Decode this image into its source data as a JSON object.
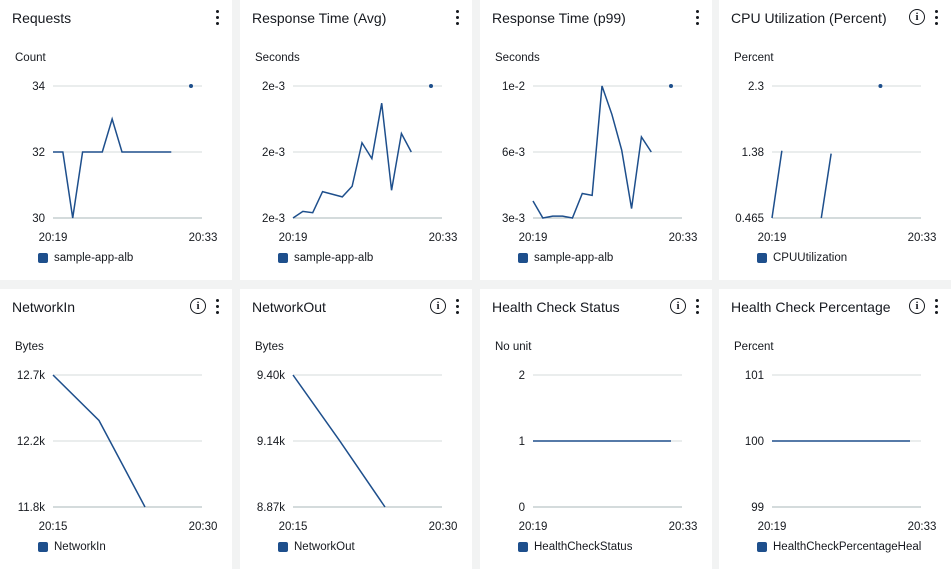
{
  "colors": {
    "line": "#1e4f8c",
    "grid": "#d5dbdb",
    "axis": "#aab7b8"
  },
  "icons": {
    "menu": "kebab-menu-icon",
    "info": "info-icon"
  },
  "widgets": [
    {
      "title": "Requests",
      "has_info": false,
      "unit": "Count",
      "y_ticks": [
        "34",
        "32",
        "30"
      ],
      "x_ticks": [
        "20:19",
        "20:33"
      ],
      "legend": "sample-app-alb",
      "chart_data": {
        "type": "line",
        "title": "Requests",
        "ylabel": "Count",
        "x": [
          "20:19",
          "20:20",
          "20:21",
          "20:22",
          "20:23",
          "20:24",
          "20:25",
          "20:26",
          "20:27",
          "20:28",
          "20:29",
          "20:30",
          "20:31",
          "20:32",
          "20:33"
        ],
        "ylim": [
          30,
          34
        ],
        "series": [
          {
            "name": "sample-app-alb",
            "values": [
              32,
              32,
              30,
              32,
              32,
              32,
              33,
              32,
              32,
              32,
              32,
              32,
              32,
              null,
              34
            ]
          }
        ]
      }
    },
    {
      "title": "Response Time (Avg)",
      "has_info": false,
      "unit": "Seconds",
      "y_ticks": [
        "2e-3",
        "2e-3",
        "2e-3"
      ],
      "x_ticks": [
        "20:19",
        "20:33"
      ],
      "legend": "sample-app-alb",
      "chart_data": {
        "type": "line",
        "title": "Response Time (Avg)",
        "ylabel": "Seconds",
        "x": [
          "20:19",
          "20:20",
          "20:21",
          "20:22",
          "20:23",
          "20:24",
          "20:25",
          "20:26",
          "20:27",
          "20:28",
          "20:29",
          "20:30",
          "20:31",
          "20:32",
          "20:33"
        ],
        "ylim": [
          0,
          1
        ],
        "series": [
          {
            "name": "sample-app-alb",
            "values": [
              0.0,
              0.05,
              0.04,
              0.2,
              0.18,
              0.16,
              0.24,
              0.57,
              0.45,
              0.87,
              0.21,
              0.64,
              0.5,
              null,
              1.0
            ]
          }
        ]
      }
    },
    {
      "title": "Response Time (p99)",
      "has_info": false,
      "unit": "Seconds",
      "y_ticks": [
        "1e-2",
        "6e-3",
        "3e-3"
      ],
      "x_ticks": [
        "20:19",
        "20:33"
      ],
      "legend": "sample-app-alb",
      "chart_data": {
        "type": "line",
        "title": "Response Time (p99)",
        "ylabel": "Seconds",
        "x": [
          "20:19",
          "20:20",
          "20:21",
          "20:22",
          "20:23",
          "20:24",
          "20:25",
          "20:26",
          "20:27",
          "20:28",
          "20:29",
          "20:30",
          "20:31",
          "20:32",
          "20:33"
        ],
        "ylim": [
          0.003,
          0.01
        ],
        "series": [
          {
            "name": "sample-app-alb",
            "values": [
              0.0039,
              0.003,
              0.0031,
              0.0031,
              0.003,
              0.0043,
              0.0042,
              0.01,
              0.0085,
              0.0066,
              0.0035,
              0.0073,
              0.0065,
              null,
              0.01
            ]
          }
        ]
      }
    },
    {
      "title": "CPU Utilization (Percent)",
      "has_info": true,
      "unit": "Percent",
      "y_ticks": [
        "2.3",
        "1.38",
        "0.465"
      ],
      "x_ticks": [
        "20:19",
        "20:33"
      ],
      "legend": "CPUUtilization",
      "chart_data": {
        "type": "line",
        "title": "CPU Utilization (Percent)",
        "ylabel": "Percent",
        "x": [
          "20:19",
          "20:20",
          "20:21",
          "20:22",
          "20:23",
          "20:24",
          "20:25",
          "20:26",
          "20:27",
          "20:28",
          "20:29",
          "20:30",
          "20:31",
          "20:32",
          "20:33"
        ],
        "ylim": [
          0.465,
          2.3
        ],
        "series": [
          {
            "name": "CPUUtilization",
            "values": [
              0.465,
              1.4,
              null,
              null,
              null,
              0.465,
              1.36,
              null,
              null,
              null,
              null,
              2.3,
              null,
              null,
              null
            ]
          }
        ]
      }
    },
    {
      "title": "NetworkIn",
      "has_info": true,
      "unit": "Bytes",
      "y_ticks": [
        "12.7k",
        "12.2k",
        "11.8k"
      ],
      "x_ticks": [
        "20:15",
        "20:30"
      ],
      "legend": "NetworkIn",
      "chart_data": {
        "type": "line",
        "title": "NetworkIn",
        "ylabel": "Bytes",
        "x": [
          "20:15",
          "20:20",
          "20:25",
          "20:30"
        ],
        "ylim": [
          11800,
          12700
        ],
        "series": [
          {
            "name": "NetworkIn",
            "values": [
              12700,
              12390,
              11800,
              null
            ]
          }
        ]
      }
    },
    {
      "title": "NetworkOut",
      "has_info": true,
      "unit": "Bytes",
      "y_ticks": [
        "9.40k",
        "9.14k",
        "8.87k"
      ],
      "x_ticks": [
        "20:15",
        "20:30"
      ],
      "legend": "NetworkOut",
      "chart_data": {
        "type": "line",
        "title": "NetworkOut",
        "ylabel": "Bytes",
        "x": [
          "20:15",
          "20:20",
          "20:25",
          "20:30"
        ],
        "ylim": [
          8870,
          9400
        ],
        "series": [
          {
            "name": "NetworkOut",
            "values": [
              9400,
              9140,
              8870,
              null
            ]
          }
        ]
      }
    },
    {
      "title": "Health Check Status",
      "has_info": true,
      "unit": "No unit",
      "y_ticks": [
        "2",
        "1",
        "0"
      ],
      "x_ticks": [
        "20:19",
        "20:33"
      ],
      "legend": "HealthCheckStatus",
      "chart_data": {
        "type": "line",
        "title": "Health Check Status",
        "ylabel": "No unit",
        "x": [
          "20:19",
          "20:33"
        ],
        "ylim": [
          0,
          2
        ],
        "series": [
          {
            "name": "HealthCheckStatus",
            "values": [
              1,
              1
            ]
          }
        ]
      }
    },
    {
      "title": "Health Check Percentage",
      "has_info": true,
      "unit": "Percent",
      "y_ticks": [
        "101",
        "100",
        "99"
      ],
      "x_ticks": [
        "20:19",
        "20:33"
      ],
      "legend": "HealthCheckPercentageHealthy",
      "chart_data": {
        "type": "line",
        "title": "Health Check Percentage",
        "ylabel": "Percent",
        "x": [
          "20:19",
          "20:33"
        ],
        "ylim": [
          99,
          101
        ],
        "series": [
          {
            "name": "HealthCheckPercentageHealthy",
            "values": [
              100,
              100
            ]
          }
        ]
      }
    }
  ]
}
